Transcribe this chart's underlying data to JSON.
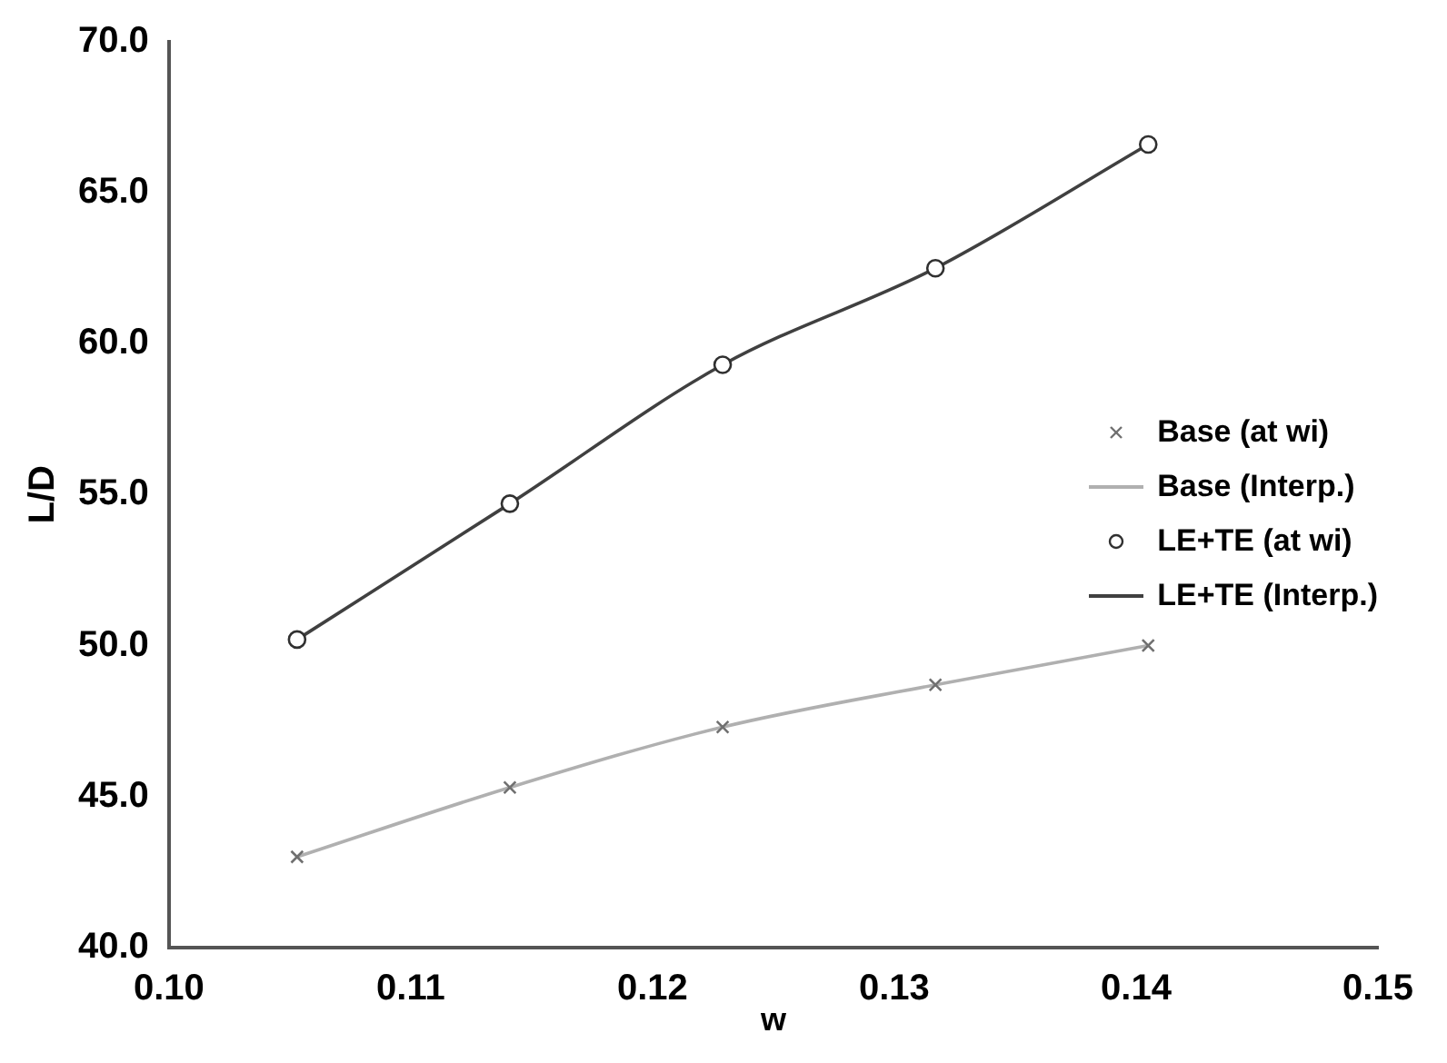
{
  "chart_data": {
    "type": "line",
    "xlabel": "w",
    "ylabel": "L/D",
    "xlim": [
      0.1,
      0.15
    ],
    "xticks": [
      {
        "value": 0.1,
        "label": "0.10"
      },
      {
        "value": 0.11,
        "label": "0.11"
      },
      {
        "value": 0.12,
        "label": "0.12"
      },
      {
        "value": 0.13,
        "label": "0.13"
      },
      {
        "value": 0.14,
        "label": "0.14"
      },
      {
        "value": 0.15,
        "label": "0.15"
      }
    ],
    "ylim": [
      40,
      70
    ],
    "yticks": [
      {
        "value": 40,
        "label": "40.0"
      },
      {
        "value": 45,
        "label": "45.0"
      },
      {
        "value": 50,
        "label": "50.0"
      },
      {
        "value": 55,
        "label": "55.0"
      },
      {
        "value": 60,
        "label": "60.0"
      },
      {
        "value": 65,
        "label": "65.0"
      },
      {
        "value": 70,
        "label": "70.0"
      }
    ],
    "grid": false,
    "legend": "right",
    "series": [
      {
        "name": "Base (at wi)",
        "type": "scatter",
        "marker": "cross",
        "color": "#707070",
        "x": [
          0.1053,
          0.1141,
          0.1229,
          0.1317,
          0.1405
        ],
        "values": [
          43.0,
          45.3,
          47.3,
          48.7,
          50.0
        ]
      },
      {
        "name": "Base (Interp.)",
        "type": "line",
        "marker": "none",
        "color": "#b0b0b0",
        "x": [
          0.1053,
          0.1141,
          0.1229,
          0.1317,
          0.1405
        ],
        "values": [
          43.0,
          45.3,
          47.3,
          48.7,
          50.0
        ]
      },
      {
        "name": "LE+TE (at wi)",
        "type": "scatter",
        "marker": "circle",
        "color": "#303030",
        "x": [
          0.1053,
          0.1141,
          0.1229,
          0.1317,
          0.1405
        ],
        "values": [
          50.2,
          54.7,
          59.3,
          62.5,
          66.6
        ]
      },
      {
        "name": "LE+TE (Interp.)",
        "type": "line",
        "marker": "none",
        "color": "#404040",
        "x": [
          0.1053,
          0.1141,
          0.1229,
          0.1317,
          0.1405
        ],
        "values": [
          50.2,
          54.7,
          59.3,
          62.5,
          66.6
        ]
      }
    ]
  }
}
